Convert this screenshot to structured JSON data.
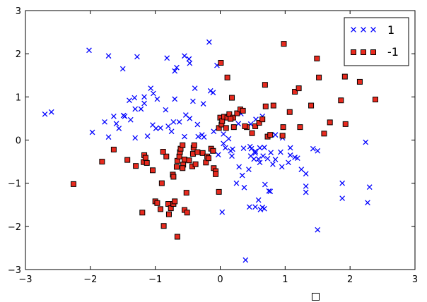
{
  "chart_data": {
    "type": "scatter",
    "title": "",
    "xlabel": "",
    "ylabel": "",
    "xlim": [
      -3,
      3
    ],
    "ylim": [
      -3,
      3
    ],
    "xticks": [
      "−3",
      "−2",
      "−1",
      "0",
      "1",
      "2",
      "3"
    ],
    "yticks": [
      "3",
      "2",
      "1",
      "0",
      "−1",
      "−2",
      "−3"
    ],
    "legend_position": "top-right",
    "grid": false,
    "series": [
      {
        "name": "1",
        "marker": "x",
        "color": "#0000ff",
        "points": [
          [
            -2.7,
            0.6
          ],
          [
            -2.6,
            0.65
          ],
          [
            -2.02,
            2.08
          ],
          [
            -1.97,
            0.18
          ],
          [
            -1.72,
            1.95
          ],
          [
            -1.5,
            1.65
          ],
          [
            -1.4,
            0.92
          ],
          [
            -1.28,
            1.93
          ],
          [
            -1.22,
            0.72
          ],
          [
            -1.07,
            1.2
          ],
          [
            -1.03,
            1.08
          ],
          [
            -0.82,
            1.9
          ],
          [
            -0.7,
            1.6
          ],
          [
            -0.67,
            1.68
          ],
          [
            -0.7,
            0.95
          ],
          [
            -0.55,
            1.95
          ],
          [
            -0.47,
            1.78
          ],
          [
            -0.48,
            1.88
          ],
          [
            -0.42,
            0.9
          ],
          [
            -0.26,
            0.84
          ],
          [
            -0.17,
            2.27
          ],
          [
            -0.11,
            1.1
          ],
          [
            -0.05,
            1.73
          ],
          [
            -0.39,
            1.2
          ],
          [
            -0.15,
            1.14
          ],
          [
            -0.72,
            0.42
          ],
          [
            -0.84,
            0.7
          ],
          [
            -0.97,
            0.95
          ],
          [
            -1.17,
            1.0
          ],
          [
            -1.32,
            0.98
          ],
          [
            -1.31,
            0.72
          ],
          [
            -1.17,
            0.85
          ],
          [
            -1.47,
            0.55
          ],
          [
            -1.6,
            0.38
          ],
          [
            -1.64,
            0.55
          ],
          [
            -1.49,
            0.57
          ],
          [
            -1.38,
            0.47
          ],
          [
            -1.04,
            0.35
          ],
          [
            -0.99,
            0.27
          ],
          [
            -0.92,
            0.28
          ],
          [
            -0.8,
            0.32
          ],
          [
            -0.63,
            0.42
          ],
          [
            -0.53,
            0.58
          ],
          [
            -0.47,
            0.5
          ],
          [
            -0.35,
            0.36
          ],
          [
            -0.28,
            0.12
          ],
          [
            -0.34,
            0.08
          ],
          [
            -0.25,
            0.07
          ],
          [
            -0.55,
            0.08
          ],
          [
            -0.75,
            0.2
          ],
          [
            -1.12,
            0.09
          ],
          [
            -1.31,
            0.05
          ],
          [
            -1.56,
            0.27
          ],
          [
            -1.72,
            0.07
          ],
          [
            -1.78,
            0.42
          ],
          [
            -0.1,
            0.2
          ],
          [
            0.02,
            0.45
          ],
          [
            0.05,
            0.14
          ],
          [
            0.13,
            0.03
          ],
          [
            0.05,
            -0.08
          ],
          [
            0.08,
            -0.18
          ],
          [
            0.16,
            -0.25
          ],
          [
            0.18,
            -0.37
          ],
          [
            0.29,
            -0.62
          ],
          [
            0.34,
            -0.82
          ],
          [
            0.25,
            -1.0
          ],
          [
            0.37,
            -1.1
          ],
          [
            0.44,
            -0.68
          ],
          [
            0.47,
            -0.37
          ],
          [
            0.54,
            -0.26
          ],
          [
            0.54,
            -0.3
          ],
          [
            0.61,
            -0.52
          ],
          [
            0.52,
            -0.44
          ],
          [
            0.66,
            -0.37
          ],
          [
            0.73,
            -0.43
          ],
          [
            0.81,
            -0.56
          ],
          [
            0.85,
            -0.45
          ],
          [
            0.78,
            -0.29
          ],
          [
            0.85,
            0.12
          ],
          [
            0.79,
            0.12
          ],
          [
            0.96,
            0.05
          ],
          [
            0.93,
            -0.28
          ],
          [
            1.08,
            -0.35
          ],
          [
            0.95,
            -0.62
          ],
          [
            1.15,
            -0.4
          ],
          [
            1.25,
            -0.68
          ],
          [
            1.32,
            -1.07
          ],
          [
            1.32,
            -1.21
          ],
          [
            0.75,
            -1.18
          ],
          [
            0.77,
            -1.19
          ],
          [
            0.69,
            -1.03
          ],
          [
            0.59,
            -1.39
          ],
          [
            0.45,
            -1.55
          ],
          [
            0.62,
            -1.61
          ],
          [
            0.65,
            -1.56
          ],
          [
            0.68,
            -1.59
          ],
          [
            0.03,
            -1.67
          ],
          [
            0.54,
            -1.55
          ],
          [
            0.39,
            -2.78
          ],
          [
            1.5,
            -2.08
          ],
          [
            1.88,
            -1.0
          ],
          [
            1.88,
            -1.35
          ],
          [
            2.27,
            -1.45
          ],
          [
            2.3,
            -1.09
          ],
          [
            2.24,
            -0.05
          ],
          [
            1.5,
            -0.25
          ],
          [
            1.43,
            -0.2
          ],
          [
            1.32,
            -0.78
          ],
          [
            1.19,
            -0.42
          ],
          [
            1.05,
            -0.52
          ],
          [
            1.08,
            -0.18
          ],
          [
            0.59,
            -0.44
          ],
          [
            0.46,
            -0.15
          ],
          [
            0.19,
            -0.21
          ],
          [
            -0.12,
            -0.25
          ],
          [
            -0.03,
            -0.34
          ],
          [
            0.36,
            -0.19
          ],
          [
            0.48,
            -0.2
          ],
          [
            0.61,
            -0.18
          ],
          [
            0.68,
            -0.17
          ],
          [
            0.28,
            0.38
          ],
          [
            0.47,
            0.37
          ],
          [
            0.55,
            0.48
          ],
          [
            0.32,
            0.61
          ],
          [
            0.65,
            0.55
          ]
        ]
      },
      {
        "name": "-1",
        "marker": "s",
        "color": "#e82a1e",
        "points": [
          [
            -2.26,
            -1.02
          ],
          [
            -1.82,
            -0.5
          ],
          [
            -1.64,
            -0.22
          ],
          [
            -1.43,
            -0.46
          ],
          [
            -1.3,
            -0.6
          ],
          [
            -1.18,
            -0.51
          ],
          [
            -1.17,
            -0.35
          ],
          [
            -1.15,
            -0.41
          ],
          [
            -1.13,
            -0.53
          ],
          [
            -1.04,
            -0.7
          ],
          [
            -1.0,
            -1.42
          ],
          [
            -0.97,
            -1.46
          ],
          [
            -0.92,
            -1.6
          ],
          [
            -0.87,
            -1.99
          ],
          [
            -0.83,
            -0.38
          ],
          [
            -0.8,
            -1.48
          ],
          [
            -0.79,
            -1.72
          ],
          [
            -0.76,
            -1.58
          ],
          [
            -0.72,
            -1.48
          ],
          [
            -0.7,
            -1.42
          ],
          [
            -0.73,
            -0.8
          ],
          [
            -0.72,
            -0.85
          ],
          [
            -0.67,
            -0.62
          ],
          [
            -0.66,
            -0.48
          ],
          [
            -0.63,
            -0.38
          ],
          [
            -0.62,
            -0.28
          ],
          [
            -0.61,
            -0.2
          ],
          [
            -0.58,
            -0.12
          ],
          [
            -0.57,
            -0.57
          ],
          [
            -0.58,
            -0.65
          ],
          [
            -0.55,
            -1.62
          ],
          [
            -0.51,
            -1.68
          ],
          [
            -0.52,
            -1.22
          ],
          [
            -0.55,
            -0.45
          ],
          [
            -0.48,
            -0.47
          ],
          [
            -0.43,
            -0.61
          ],
          [
            -0.38,
            -0.56
          ],
          [
            -0.42,
            -0.32
          ],
          [
            -0.41,
            -0.18
          ],
          [
            -0.35,
            -0.28
          ],
          [
            -0.27,
            -0.3
          ],
          [
            -0.22,
            -0.52
          ],
          [
            -0.2,
            -0.38
          ],
          [
            -0.18,
            -0.42
          ],
          [
            -0.14,
            -0.2
          ],
          [
            -0.11,
            -0.25
          ],
          [
            -0.1,
            -0.65
          ],
          [
            -0.07,
            -0.72
          ],
          [
            -0.07,
            -0.79
          ],
          [
            -0.02,
            -1.2
          ],
          [
            -0.02,
            0.28
          ],
          [
            0.0,
            0.52
          ],
          [
            0.02,
            0.36
          ],
          [
            0.03,
            0.44
          ],
          [
            0.06,
            0.54
          ],
          [
            0.09,
            0.28
          ],
          [
            0.11,
            0.52
          ],
          [
            0.14,
            0.6
          ],
          [
            0.18,
            0.98
          ],
          [
            0.2,
            0.52
          ],
          [
            0.26,
            0.62
          ],
          [
            0.31,
            0.71
          ],
          [
            0.35,
            0.68
          ],
          [
            0.41,
            0.3
          ],
          [
            0.49,
            0.16
          ],
          [
            0.54,
            0.32
          ],
          [
            0.6,
            0.4
          ],
          [
            0.65,
            0.48
          ],
          [
            0.69,
            1.28
          ],
          [
            0.7,
            0.78
          ],
          [
            0.73,
            0.08
          ],
          [
            0.77,
            0.12
          ],
          [
            0.82,
            0.8
          ],
          [
            0.96,
            0.1
          ],
          [
            0.97,
            0.3
          ],
          [
            1.07,
            0.65
          ],
          [
            1.15,
            1.12
          ],
          [
            1.21,
            1.2
          ],
          [
            1.4,
            0.8
          ],
          [
            1.49,
            1.89
          ],
          [
            1.52,
            1.45
          ],
          [
            1.6,
            0.15
          ],
          [
            1.69,
            0.41
          ],
          [
            1.86,
            0.92
          ],
          [
            1.92,
            1.47
          ],
          [
            1.93,
            0.37
          ],
          [
            2.15,
            1.35
          ],
          [
            2.39,
            0.94
          ],
          [
            0.98,
            2.23
          ],
          [
            1.23,
            0.3
          ],
          [
            0.38,
            0.32
          ],
          [
            0.21,
            0.3
          ],
          [
            0.16,
            0.49
          ],
          [
            0.11,
            1.45
          ],
          [
            -0.4,
            -0.12
          ],
          [
            -0.88,
            -0.27
          ],
          [
            -1.2,
            -1.68
          ],
          [
            -0.9,
            -1.0
          ],
          [
            -0.66,
            -2.24
          ],
          [
            0.01,
            1.79
          ]
        ]
      }
    ]
  }
}
